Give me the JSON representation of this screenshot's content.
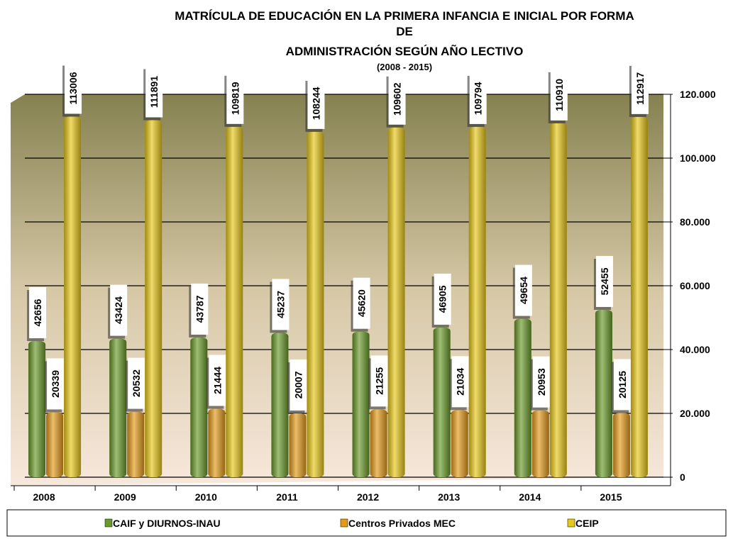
{
  "chart_data": {
    "type": "bar",
    "title": [
      "MATRÍCULA DE EDUCACIÓN EN LA PRIMERA INFANCIA E INICIAL POR FORMA",
      "DE",
      "ADMINISTRACIÓN SEGÚN AÑO LECTIVO"
    ],
    "subtitle": "(2008 - 2015)",
    "categories": [
      "2008",
      "2009",
      "2010",
      "2011",
      "2012",
      "2013",
      "2014",
      "2015"
    ],
    "series": [
      {
        "name": "CAIF y DIURNOS-INAU",
        "color": "#6a9a2a",
        "values": [
          42656,
          43424,
          43787,
          45237,
          45620,
          46905,
          49654,
          52455
        ]
      },
      {
        "name": "Centros Privados MEC",
        "color": "#e39a1a",
        "values": [
          20339,
          20532,
          21444,
          20007,
          21255,
          21034,
          20953,
          20125
        ]
      },
      {
        "name": "CEIP",
        "color": "#e8c81a",
        "values": [
          113006,
          111891,
          109819,
          108244,
          109602,
          109794,
          110910,
          112917
        ]
      }
    ],
    "ylim": [
      0,
      120000
    ],
    "yticks": [
      0,
      {
        "value": 20000,
        "label": "20.000"
      },
      {
        "value": 40000,
        "label": "40.000"
      },
      {
        "value": 60000,
        "label": "60.000"
      },
      {
        "value": 80000,
        "label": "80.000"
      },
      {
        "value": 100000,
        "label": "100.000"
      },
      {
        "value": 120000,
        "label": "120.000"
      }
    ],
    "grid": true,
    "legend": "bottom"
  }
}
